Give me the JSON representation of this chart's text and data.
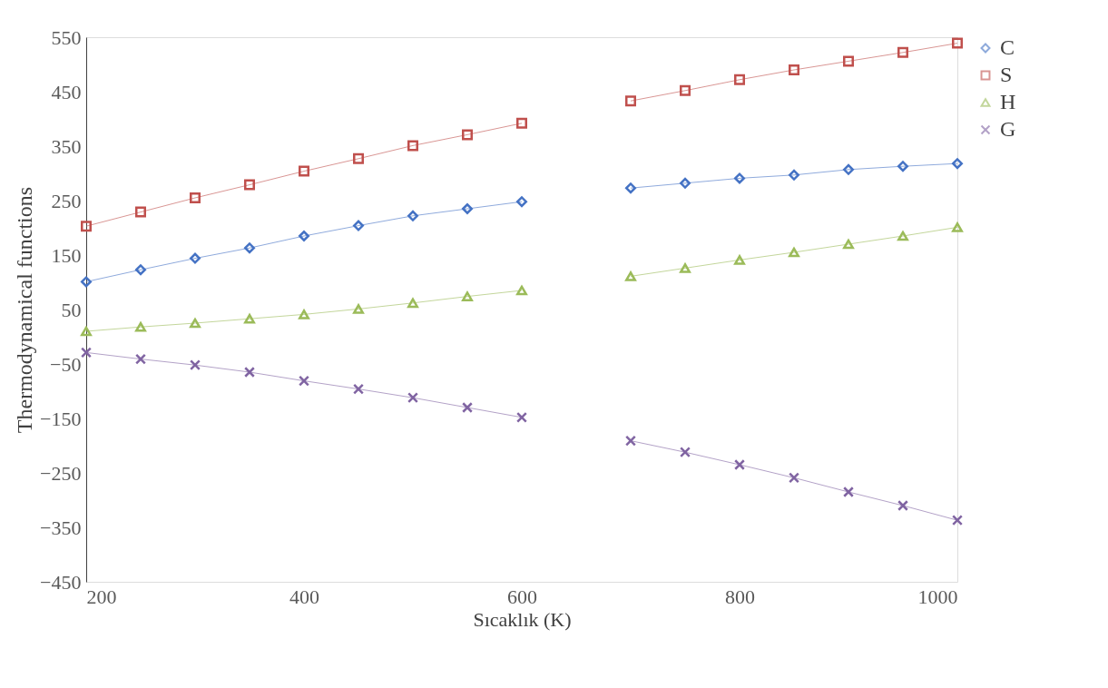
{
  "chart_data": {
    "type": "line",
    "xlabel": "Sıcaklık (K)",
    "ylabel": "Thermodynamical functions",
    "x": [
      200,
      250,
      300,
      350,
      400,
      450,
      500,
      550,
      600,
      650,
      700,
      750,
      800,
      850,
      900,
      950,
      1000
    ],
    "xlim": [
      200,
      1000
    ],
    "xticks": [
      200,
      400,
      600,
      800,
      1000
    ],
    "ylim": [
      -450,
      550
    ],
    "yticks": [
      -450,
      -350,
      -250,
      -150,
      -50,
      50,
      150,
      250,
      350,
      450,
      550
    ],
    "grid": false,
    "legend": "right",
    "series": [
      {
        "name": "C",
        "color": "#4472c4",
        "marker": "diamond",
        "values": [
          101,
          123,
          144,
          163,
          185,
          204,
          222,
          235,
          248,
          null,
          273,
          282,
          291,
          297,
          307,
          313,
          318
        ]
      },
      {
        "name": "S",
        "color": "#c0504d",
        "marker": "square",
        "values": [
          203,
          229,
          255,
          279,
          304,
          327,
          351,
          371,
          392,
          null,
          433,
          452,
          472,
          490,
          506,
          522,
          539
        ]
      },
      {
        "name": "H",
        "color": "#9bbb59",
        "marker": "triangle",
        "values": [
          10,
          18,
          25,
          33,
          41,
          51,
          62,
          74,
          85,
          null,
          111,
          126,
          141,
          155,
          170,
          185,
          201
        ]
      },
      {
        "name": "G",
        "color": "#8064a2",
        "marker": "cross",
        "values": [
          -29,
          -41,
          -52,
          -65,
          -81,
          -96,
          -112,
          -130,
          -148,
          null,
          -191,
          -212,
          -235,
          -259,
          -285,
          -310,
          -337
        ]
      }
    ]
  }
}
